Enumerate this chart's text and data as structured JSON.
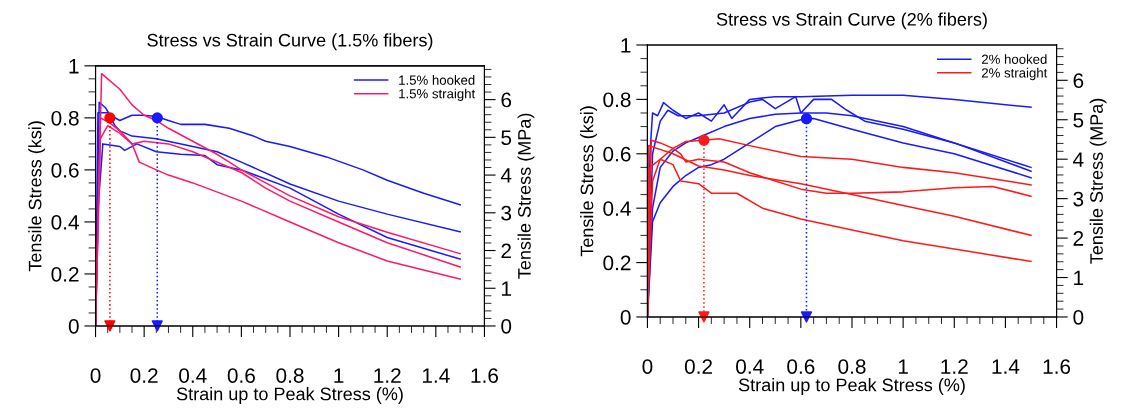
{
  "chart_data": [
    {
      "type": "line",
      "title": "Stress vs Strain Curve (1.5% fibers)",
      "xlabel": "Strain up to Peak Stress (%)",
      "ylabel": "Tensile Stress (ksi)",
      "y2label": "Tensile Stress (MPa)",
      "xlim": [
        0,
        1.6
      ],
      "xticks": [
        0,
        0.2,
        0.4,
        0.6,
        0.8,
        1,
        1.2,
        1.4,
        1.6
      ],
      "ylim": [
        0,
        1
      ],
      "yticks": [
        0,
        0.2,
        0.4,
        0.6,
        0.8,
        1
      ],
      "y2lim": [
        0,
        6.895
      ],
      "y2ticks": [
        0,
        1,
        2,
        3,
        4,
        5,
        6
      ],
      "legend": "top right",
      "series": [
        {
          "name": "1.5% hooked",
          "color": "#1a1aff",
          "x": [
            0,
            0.015,
            0.04,
            0.06,
            0.1,
            0.15,
            0.2,
            0.25,
            0.3,
            0.35,
            0.45,
            0.55,
            0.65,
            0.7,
            0.8,
            0.95,
            1.1,
            1.2,
            1.35,
            1.5
          ],
          "values": [
            0,
            0.86,
            0.84,
            0.81,
            0.79,
            0.81,
            0.81,
            0.805,
            0.79,
            0.775,
            0.775,
            0.76,
            0.73,
            0.71,
            0.69,
            0.65,
            0.6,
            0.56,
            0.51,
            0.466
          ]
        },
        {
          "color": "#1a1aff",
          "x": [
            0,
            0.01,
            0.05,
            0.08,
            0.1,
            0.15,
            0.25,
            0.4,
            0.5,
            0.6,
            0.8,
            1.0,
            1.2,
            1.5
          ],
          "values": [
            0,
            0.82,
            0.82,
            0.77,
            0.75,
            0.73,
            0.72,
            0.69,
            0.67,
            0.63,
            0.546,
            0.48,
            0.43,
            0.362
          ]
        },
        {
          "color": "#1a1aff",
          "x": [
            0,
            0.01,
            0.03,
            0.1,
            0.12,
            0.17,
            0.25,
            0.35,
            0.45,
            0.5,
            0.6,
            0.8,
            1.0,
            1.2,
            1.5
          ],
          "values": [
            0,
            0.45,
            0.7,
            0.69,
            0.675,
            0.7,
            0.67,
            0.66,
            0.655,
            0.62,
            0.6,
            0.53,
            0.43,
            0.34,
            0.257
          ]
        },
        {
          "name": "1.5% straight",
          "color": "#ff1a66",
          "x": [
            0,
            0.025,
            0.05,
            0.1,
            0.15,
            0.2,
            0.25,
            0.3,
            0.4,
            0.5,
            0.6,
            0.7,
            0.8,
            1.0,
            1.2,
            1.5
          ],
          "values": [
            0,
            0.97,
            0.95,
            0.91,
            0.85,
            0.81,
            0.79,
            0.76,
            0.71,
            0.66,
            0.6,
            0.55,
            0.5,
            0.42,
            0.36,
            0.278
          ]
        },
        {
          "color": "#ff1a66",
          "x": [
            0,
            0.02,
            0.06,
            0.1,
            0.15,
            0.2,
            0.3,
            0.4,
            0.6,
            0.7,
            0.8,
            1.0,
            1.2,
            1.5
          ],
          "values": [
            0,
            0.8,
            0.78,
            0.75,
            0.7,
            0.71,
            0.7,
            0.67,
            0.59,
            0.53,
            0.48,
            0.4,
            0.32,
            0.227
          ]
        },
        {
          "color": "#ff1a66",
          "x": [
            0,
            0.02,
            0.05,
            0.1,
            0.15,
            0.18,
            0.25,
            0.3,
            0.4,
            0.6,
            0.8,
            1.0,
            1.2,
            1.5
          ],
          "values": [
            0,
            0.72,
            0.77,
            0.74,
            0.7,
            0.63,
            0.6,
            0.58,
            0.55,
            0.48,
            0.4,
            0.32,
            0.25,
            0.18
          ]
        },
        {
          "type": "line",
          "line_style": "dotted",
          "color": "#ff0000",
          "x": [
            0.059,
            0.059
          ],
          "values": [
            0.8,
            0
          ]
        },
        {
          "type": "line",
          "line_style": "dotted",
          "color": "#1a1aff",
          "x": [
            0.254,
            0.254
          ],
          "values": [
            0.8,
            0
          ]
        },
        {
          "type": "scatter",
          "marker": "circle",
          "color": "#ff0000",
          "x": [
            0.059
          ],
          "values": [
            0.8
          ]
        },
        {
          "type": "scatter",
          "marker": "circle",
          "color": "#1a1aff",
          "x": [
            0.254
          ],
          "values": [
            0.8
          ]
        },
        {
          "type": "scatter",
          "marker": "triangle",
          "color": "#ff0000",
          "x": [
            0.059
          ],
          "values": [
            0
          ]
        },
        {
          "type": "scatter",
          "marker": "triangle",
          "color": "#1a1aff",
          "x": [
            0.254
          ],
          "values": [
            0
          ]
        }
      ]
    },
    {
      "type": "line",
      "title": "Stress vs Strain Curve (2% fibers)",
      "xlabel": "Strain up to Peak Stress (%)",
      "ylabel": "Tensile Stress (ksi)",
      "y2label": "Tensile Stress (MPa)",
      "xlim": [
        0,
        1.6
      ],
      "xticks": [
        0,
        0.2,
        0.4,
        0.6,
        0.8,
        1,
        1.2,
        1.4,
        1.6
      ],
      "ylim": [
        0,
        1
      ],
      "yticks": [
        0,
        0.2,
        0.4,
        0.6,
        0.8,
        1
      ],
      "y2lim": [
        0,
        6.895
      ],
      "y2ticks": [
        0,
        1,
        2,
        3,
        4,
        5,
        6
      ],
      "legend": "top right",
      "series": [
        {
          "name": "2% hooked",
          "color": "#1a1aff",
          "x": [
            0,
            0.01,
            0.02,
            0.04,
            0.063,
            0.1,
            0.15,
            0.2,
            0.25,
            0.3,
            0.33,
            0.4,
            0.5,
            0.6,
            0.8,
            1.0,
            1.2,
            1.5
          ],
          "values": [
            0,
            0.6,
            0.75,
            0.74,
            0.788,
            0.76,
            0.73,
            0.75,
            0.72,
            0.78,
            0.73,
            0.8,
            0.81,
            0.81,
            0.815,
            0.815,
            0.8,
            0.771
          ]
        },
        {
          "color": "#1a1aff",
          "x": [
            0,
            0.02,
            0.05,
            0.08,
            0.12,
            0.2,
            0.3,
            0.4,
            0.45,
            0.5,
            0.58,
            0.6,
            0.65,
            0.72,
            0.78,
            0.85,
            1.0,
            1.2,
            1.5
          ],
          "values": [
            0,
            0.6,
            0.72,
            0.76,
            0.74,
            0.74,
            0.75,
            0.79,
            0.8,
            0.766,
            0.81,
            0.75,
            0.8,
            0.8,
            0.76,
            0.72,
            0.69,
            0.64,
            0.55
          ]
        },
        {
          "color": "#1a1aff",
          "x": [
            0,
            0.02,
            0.05,
            0.1,
            0.15,
            0.2,
            0.25,
            0.3,
            0.4,
            0.5,
            0.6,
            0.622,
            0.65,
            0.8,
            1.0,
            1.2,
            1.5
          ],
          "values": [
            0,
            0.35,
            0.42,
            0.48,
            0.52,
            0.55,
            0.56,
            0.58,
            0.64,
            0.7,
            0.725,
            0.729,
            0.73,
            0.69,
            0.64,
            0.6,
            0.512
          ]
        },
        {
          "color": "#1a1aff",
          "x": [
            0,
            0.02,
            0.05,
            0.1,
            0.15,
            0.2,
            0.3,
            0.4,
            0.5,
            0.6,
            0.7,
            0.8,
            1.0,
            1.2,
            1.5
          ],
          "values": [
            0,
            0.4,
            0.55,
            0.61,
            0.64,
            0.66,
            0.7,
            0.73,
            0.745,
            0.75,
            0.75,
            0.74,
            0.7,
            0.64,
            0.536
          ]
        },
        {
          "name": "2% straight",
          "color": "#ff1a1a",
          "x": [
            0,
            0.02,
            0.05,
            0.1,
            0.15,
            0.221,
            0.28,
            0.4,
            0.6,
            0.8,
            1.0,
            1.2,
            1.5
          ],
          "values": [
            0,
            0.5,
            0.58,
            0.62,
            0.645,
            0.65,
            0.655,
            0.63,
            0.59,
            0.58,
            0.55,
            0.53,
            0.486
          ]
        },
        {
          "color": "#ff1a1a",
          "x": [
            0,
            0.015,
            0.05,
            0.1,
            0.13,
            0.15,
            0.2,
            0.3,
            0.4,
            0.5,
            0.6,
            0.7,
            0.8,
            1.0,
            1.2,
            1.35,
            1.5
          ],
          "values": [
            0,
            0.65,
            0.64,
            0.62,
            0.6,
            0.57,
            0.58,
            0.57,
            0.53,
            0.5,
            0.47,
            0.455,
            0.455,
            0.46,
            0.475,
            0.48,
            0.444
          ]
        },
        {
          "color": "#ff1a1a",
          "x": [
            0,
            0.005,
            0.1,
            0.2,
            0.3,
            0.4,
            0.6,
            0.8,
            1.0,
            1.2,
            1.5
          ],
          "values": [
            0,
            0.63,
            0.6,
            0.555,
            0.54,
            0.52,
            0.49,
            0.45,
            0.41,
            0.37,
            0.3
          ]
        },
        {
          "color": "#ff1a1a",
          "x": [
            0,
            0.01,
            0.05,
            0.1,
            0.13,
            0.2,
            0.25,
            0.35,
            0.45,
            0.6,
            0.8,
            1.0,
            1.2,
            1.5
          ],
          "values": [
            0,
            0.55,
            0.58,
            0.56,
            0.5,
            0.49,
            0.455,
            0.455,
            0.4,
            0.36,
            0.32,
            0.28,
            0.25,
            0.204
          ]
        },
        {
          "type": "line",
          "line_style": "dotted",
          "color": "#ff1a1a",
          "x": [
            0.221,
            0.221
          ],
          "values": [
            0.65,
            0
          ]
        },
        {
          "type": "line",
          "line_style": "dotted",
          "color": "#1a1aff",
          "x": [
            0.622,
            0.622
          ],
          "values": [
            0.729,
            0
          ]
        },
        {
          "type": "scatter",
          "marker": "circle",
          "color": "#ff1a1a",
          "x": [
            0.221
          ],
          "values": [
            0.65
          ]
        },
        {
          "type": "scatter",
          "marker": "circle",
          "color": "#1a1aff",
          "x": [
            0.622
          ],
          "values": [
            0.729
          ]
        },
        {
          "type": "scatter",
          "marker": "triangle",
          "color": "#ff1a1a",
          "x": [
            0.221
          ],
          "values": [
            0
          ]
        },
        {
          "type": "scatter",
          "marker": "triangle",
          "color": "#1a1aff",
          "x": [
            0.622
          ],
          "values": [
            0
          ]
        }
      ]
    }
  ]
}
